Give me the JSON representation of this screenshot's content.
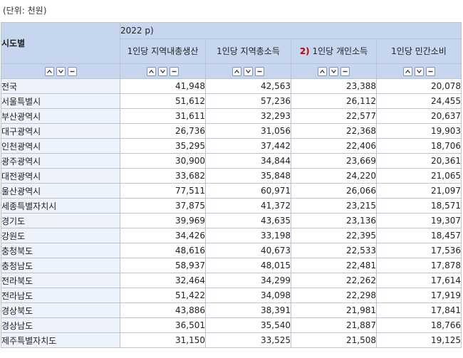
{
  "unit_label": "(단위: 천원)",
  "header": {
    "sido_label": "시도별",
    "year_label": "2022 p)",
    "columns": [
      {
        "label": "1인당 지역내총생산"
      },
      {
        "label": "1인당 지역총소득"
      },
      {
        "prefix": "2)",
        "label": " 1인당 개인소득"
      },
      {
        "label": "1인당 민간소비"
      }
    ]
  },
  "rows": [
    {
      "name": "전국",
      "v": [
        "41,948",
        "42,563",
        "23,388",
        "20,078"
      ]
    },
    {
      "name": "서울특별시",
      "v": [
        "51,612",
        "57,236",
        "26,112",
        "24,455"
      ]
    },
    {
      "name": "부산광역시",
      "v": [
        "31,611",
        "32,293",
        "22,577",
        "20,637"
      ]
    },
    {
      "name": "대구광역시",
      "v": [
        "26,736",
        "31,056",
        "22,368",
        "19,903"
      ]
    },
    {
      "name": "인천광역시",
      "v": [
        "35,295",
        "37,442",
        "22,406",
        "18,706"
      ]
    },
    {
      "name": "광주광역시",
      "v": [
        "30,900",
        "34,844",
        "23,669",
        "20,361"
      ]
    },
    {
      "name": "대전광역시",
      "v": [
        "33,682",
        "35,848",
        "24,220",
        "21,065"
      ]
    },
    {
      "name": "울산광역시",
      "v": [
        "77,511",
        "60,971",
        "26,066",
        "21,097"
      ]
    },
    {
      "name": "세종특별자치시",
      "v": [
        "37,875",
        "41,372",
        "23,215",
        "18,571"
      ]
    },
    {
      "name": "경기도",
      "v": [
        "39,969",
        "43,635",
        "23,136",
        "19,307"
      ]
    },
    {
      "name": "강원도",
      "v": [
        "34,426",
        "33,198",
        "22,395",
        "18,457"
      ]
    },
    {
      "name": "충청북도",
      "v": [
        "48,616",
        "40,673",
        "22,533",
        "17,536"
      ]
    },
    {
      "name": "충청남도",
      "v": [
        "58,937",
        "48,015",
        "22,481",
        "17,878"
      ]
    },
    {
      "name": "전라북도",
      "v": [
        "32,464",
        "34,299",
        "22,262",
        "17,614"
      ]
    },
    {
      "name": "전라남도",
      "v": [
        "51,422",
        "34,098",
        "22,298",
        "17,919"
      ]
    },
    {
      "name": "경상북도",
      "v": [
        "43,886",
        "38,391",
        "21,981",
        "17,841"
      ]
    },
    {
      "name": "경상남도",
      "v": [
        "36,501",
        "35,540",
        "21,887",
        "18,766"
      ]
    },
    {
      "name": "제주특별자치도",
      "v": [
        "31,150",
        "33,525",
        "21,508",
        "19,125"
      ]
    }
  ],
  "icons": {
    "sort_up": "chevron-up-icon",
    "sort_down": "chevron-down-icon",
    "collapse": "minus-icon"
  }
}
